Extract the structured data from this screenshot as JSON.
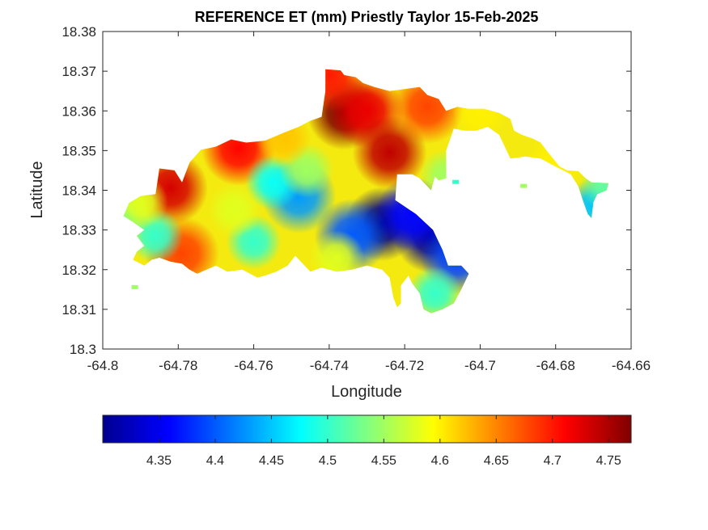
{
  "chart_data": {
    "type": "heatmap",
    "title": "REFERENCE ET (mm) Priestly Taylor 15-Feb-2025",
    "xlabel": "Longitude",
    "ylabel": "Latitude",
    "xlim": [
      -64.8,
      -64.66
    ],
    "ylim": [
      18.3,
      18.38
    ],
    "x_ticks": [
      "-64.8",
      "-64.78",
      "-64.76",
      "-64.74",
      "-64.72",
      "-64.7",
      "-64.68",
      "-64.66"
    ],
    "y_ticks": [
      "18.3",
      "18.31",
      "18.32",
      "18.33",
      "18.34",
      "18.35",
      "18.36",
      "18.37",
      "18.38"
    ],
    "grid": false,
    "colormap": "jet",
    "colorbar": {
      "orientation": "horizontal",
      "placement": "bottom",
      "range": [
        4.3,
        4.77
      ],
      "ticks": [
        "4.35",
        "4.4",
        "4.45",
        "4.5",
        "4.55",
        "4.6",
        "4.65",
        "4.7",
        "4.75"
      ]
    },
    "outline": [
      [
        -64.793,
        18.3368
      ],
      [
        -64.79,
        18.3385
      ],
      [
        -64.786,
        18.339
      ],
      [
        -64.785,
        18.3455
      ],
      [
        -64.781,
        18.345
      ],
      [
        -64.779,
        18.342
      ],
      [
        -64.777,
        18.347
      ],
      [
        -64.774,
        18.3502
      ],
      [
        -64.77,
        18.351
      ],
      [
        -64.766,
        18.3528
      ],
      [
        -64.762,
        18.352
      ],
      [
        -64.757,
        18.3525
      ],
      [
        -64.752,
        18.3545
      ],
      [
        -64.748,
        18.356
      ],
      [
        -64.745,
        18.3575
      ],
      [
        -64.742,
        18.3585
      ],
      [
        -64.741,
        18.365
      ],
      [
        -64.741,
        18.3705
      ],
      [
        -64.737,
        18.3702
      ],
      [
        -64.736,
        18.369
      ],
      [
        -64.733,
        18.3685
      ],
      [
        -64.731,
        18.367
      ],
      [
        -64.728,
        18.366
      ],
      [
        -64.724,
        18.365
      ],
      [
        -64.72,
        18.3655
      ],
      [
        -64.716,
        18.366
      ],
      [
        -64.714,
        18.364
      ],
      [
        -64.711,
        18.363
      ],
      [
        -64.709,
        18.36
      ],
      [
        -64.706,
        18.361
      ],
      [
        -64.703,
        18.3605
      ],
      [
        -64.699,
        18.3605
      ],
      [
        -64.695,
        18.3595
      ],
      [
        -64.692,
        18.358
      ],
      [
        -64.691,
        18.355
      ],
      [
        -64.689,
        18.354
      ],
      [
        -64.686,
        18.353
      ],
      [
        -64.684,
        18.352
      ],
      [
        -64.682,
        18.3495
      ],
      [
        -64.679,
        18.346
      ],
      [
        -64.677,
        18.345
      ],
      [
        -64.674,
        18.3448
      ],
      [
        -64.672,
        18.343
      ],
      [
        -64.6705,
        18.342
      ],
      [
        -64.666,
        18.3418
      ],
      [
        -64.6665,
        18.34
      ],
      [
        -64.669,
        18.339
      ],
      [
        -64.67,
        18.337
      ],
      [
        -64.6705,
        18.333
      ],
      [
        -64.6715,
        18.334
      ],
      [
        -64.673,
        18.338
      ],
      [
        -64.674,
        18.341
      ],
      [
        -64.676,
        18.344
      ],
      [
        -64.678,
        18.345
      ],
      [
        -64.681,
        18.3465
      ],
      [
        -64.684,
        18.348
      ],
      [
        -64.688,
        18.3485
      ],
      [
        -64.692,
        18.348
      ],
      [
        -64.693,
        18.35
      ],
      [
        -64.695,
        18.354
      ],
      [
        -64.698,
        18.356
      ],
      [
        -64.701,
        18.355
      ],
      [
        -64.704,
        18.355
      ],
      [
        -64.707,
        18.3555
      ],
      [
        -64.709,
        18.35
      ],
      [
        -64.709,
        18.343
      ],
      [
        -64.711,
        18.3425
      ],
      [
        -64.712,
        18.3435
      ],
      [
        -64.713,
        18.34
      ],
      [
        -64.716,
        18.343
      ],
      [
        -64.718,
        18.344
      ],
      [
        -64.722,
        18.344
      ],
      [
        -64.7225,
        18.3375
      ],
      [
        -64.717,
        18.334
      ],
      [
        -64.7125,
        18.33
      ],
      [
        -64.71,
        18.325
      ],
      [
        -64.7085,
        18.321
      ],
      [
        -64.705,
        18.321
      ],
      [
        -64.703,
        18.319
      ],
      [
        -64.705,
        18.315
      ],
      [
        -64.707,
        18.3115
      ],
      [
        -64.71,
        18.31
      ],
      [
        -64.713,
        18.309
      ],
      [
        -64.715,
        18.31
      ],
      [
        -64.716,
        18.314
      ],
      [
        -64.718,
        18.3165
      ],
      [
        -64.719,
        18.3185
      ],
      [
        -64.721,
        18.316
      ],
      [
        -64.721,
        18.3115
      ],
      [
        -64.722,
        18.3105
      ],
      [
        -64.723,
        18.313
      ],
      [
        -64.724,
        18.318
      ],
      [
        -64.726,
        18.32
      ],
      [
        -64.73,
        18.321
      ],
      [
        -64.734,
        18.32
      ],
      [
        -64.738,
        18.3195
      ],
      [
        -64.742,
        18.3205
      ],
      [
        -64.745,
        18.3195
      ],
      [
        -64.747,
        18.3215
      ],
      [
        -64.749,
        18.3235
      ],
      [
        -64.751,
        18.321
      ],
      [
        -64.754,
        18.3195
      ],
      [
        -64.757,
        18.3185
      ],
      [
        -64.759,
        18.318
      ],
      [
        -64.761,
        18.319
      ],
      [
        -64.763,
        18.32
      ],
      [
        -64.767,
        18.3195
      ],
      [
        -64.77,
        18.321
      ],
      [
        -64.7725,
        18.32
      ],
      [
        -64.775,
        18.319
      ],
      [
        -64.777,
        18.32
      ],
      [
        -64.779,
        18.3215
      ],
      [
        -64.782,
        18.322
      ],
      [
        -64.785,
        18.323
      ],
      [
        -64.787,
        18.3225
      ],
      [
        -64.789,
        18.321
      ],
      [
        -64.792,
        18.3225
      ],
      [
        -64.791,
        18.3245
      ],
      [
        -64.789,
        18.326
      ],
      [
        -64.791,
        18.3285
      ],
      [
        -64.789,
        18.33
      ],
      [
        -64.792,
        18.332
      ],
      [
        -64.7945,
        18.3335
      ]
    ],
    "hotspots": [
      {
        "lon": -64.736,
        "lat": 18.3595,
        "value": 4.77
      },
      {
        "lon": -64.73,
        "lat": 18.36,
        "value": 4.72
      },
      {
        "lon": -64.724,
        "lat": 18.3495,
        "value": 4.74
      },
      {
        "lon": -64.714,
        "lat": 18.361,
        "value": 4.68
      },
      {
        "lon": -64.782,
        "lat": 18.3405,
        "value": 4.73
      },
      {
        "lon": -64.764,
        "lat": 18.3505,
        "value": 4.71
      },
      {
        "lon": -64.779,
        "lat": 18.324,
        "value": 4.68
      },
      {
        "lon": -64.726,
        "lat": 18.3315,
        "value": 4.3
      },
      {
        "lon": -64.713,
        "lat": 18.3285,
        "value": 4.31
      },
      {
        "lon": -64.718,
        "lat": 18.334,
        "value": 4.36
      },
      {
        "lon": -64.706,
        "lat": 18.323,
        "value": 4.39
      },
      {
        "lon": -64.734,
        "lat": 18.3285,
        "value": 4.4
      },
      {
        "lon": -64.748,
        "lat": 18.3385,
        "value": 4.43
      },
      {
        "lon": -64.755,
        "lat": 18.342,
        "value": 4.48
      },
      {
        "lon": -64.76,
        "lat": 18.327,
        "value": 4.5
      },
      {
        "lon": -64.786,
        "lat": 18.3285,
        "value": 4.5
      },
      {
        "lon": -64.795,
        "lat": 18.334,
        "value": 4.52
      },
      {
        "lon": -64.746,
        "lat": 18.345,
        "value": 4.55
      },
      {
        "lon": -64.7,
        "lat": 18.3595,
        "value": 4.6
      },
      {
        "lon": -64.67,
        "lat": 18.336,
        "value": 4.45
      },
      {
        "lon": -64.666,
        "lat": 18.3415,
        "value": 4.52
      },
      {
        "lon": -64.68,
        "lat": 18.347,
        "value": 4.6
      },
      {
        "lon": -64.709,
        "lat": 18.3435,
        "value": 4.55
      },
      {
        "lon": -64.712,
        "lat": 18.314,
        "value": 4.5
      },
      {
        "lon": -64.738,
        "lat": 18.323,
        "value": 4.58
      },
      {
        "lon": -64.765,
        "lat": 18.335,
        "value": 4.58
      },
      {
        "lon": -64.79,
        "lat": 18.337,
        "value": 4.58
      },
      {
        "lon": -64.752,
        "lat": 18.353,
        "value": 4.62
      },
      {
        "lon": -64.74,
        "lat": 18.369,
        "value": 4.7
      }
    ],
    "islets": [
      {
        "lon": -64.7915,
        "lat": 18.3155,
        "value": 4.55
      },
      {
        "lon": -64.7065,
        "lat": 18.342,
        "value": 4.5
      },
      {
        "lon": -64.6885,
        "lat": 18.341,
        "value": 4.55
      }
    ]
  }
}
